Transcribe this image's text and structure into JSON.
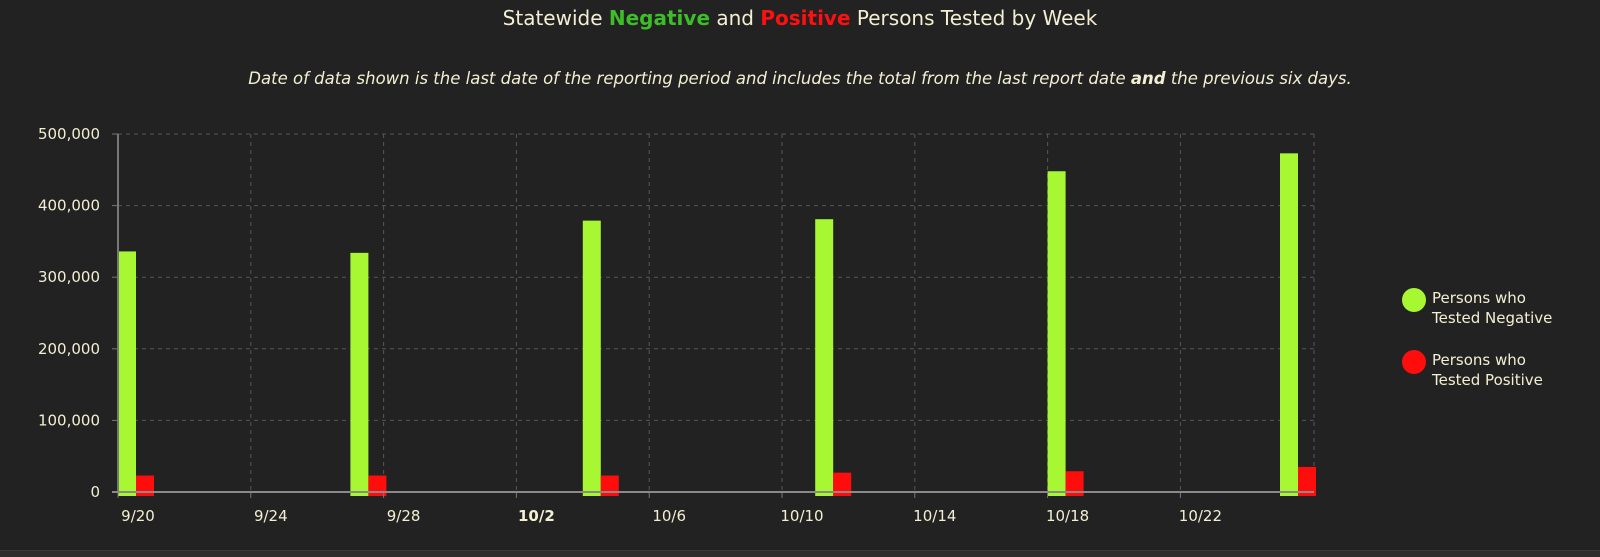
{
  "title": {
    "prefix": "Statewide ",
    "negative_word": "Negative",
    "middle": " and ",
    "positive_word": "Positive",
    "suffix": " Persons Tested by Week"
  },
  "subtitle": {
    "before": "Date of data shown is the last date of the reporting period and includes the total from the last report date ",
    "bold": "and",
    "after": " the previous six days."
  },
  "colors": {
    "negative": "#a8f733",
    "positive": "#ff0d0d",
    "title_negative": "#3dbd27",
    "title_positive": "#ff1010",
    "text": "#f3efd2",
    "background": "#222222"
  },
  "chart_data": {
    "type": "bar",
    "x_tick_labels": [
      "9/20",
      "9/24",
      "9/28",
      "10/2",
      "10/6",
      "10/10",
      "10/14",
      "10/18",
      "10/22"
    ],
    "x_tick_bold": "10/2",
    "y_tick_labels": [
      "0",
      "100,000",
      "200,000",
      "300,000",
      "400,000",
      "500,000"
    ],
    "ylim": [
      0,
      500000
    ],
    "grid": true,
    "legend_position": "right",
    "dates": [
      "9/20",
      "9/27",
      "10/4",
      "10/11",
      "10/18",
      "10/25"
    ],
    "series": [
      {
        "name": "Persons who Tested Negative",
        "color": "#a8f733",
        "values": [
          336000,
          334000,
          379000,
          381000,
          448000,
          473000
        ]
      },
      {
        "name": "Persons who Tested Positive",
        "color": "#ff0d0d",
        "values": [
          23000,
          23000,
          23000,
          27000,
          29000,
          35000
        ]
      }
    ]
  },
  "legend": [
    {
      "line1": "Persons who",
      "line2": "Tested Negative",
      "color": "#a8f733"
    },
    {
      "line1": "Persons who",
      "line2": "Tested Positive",
      "color": "#ff0d0d"
    }
  ]
}
